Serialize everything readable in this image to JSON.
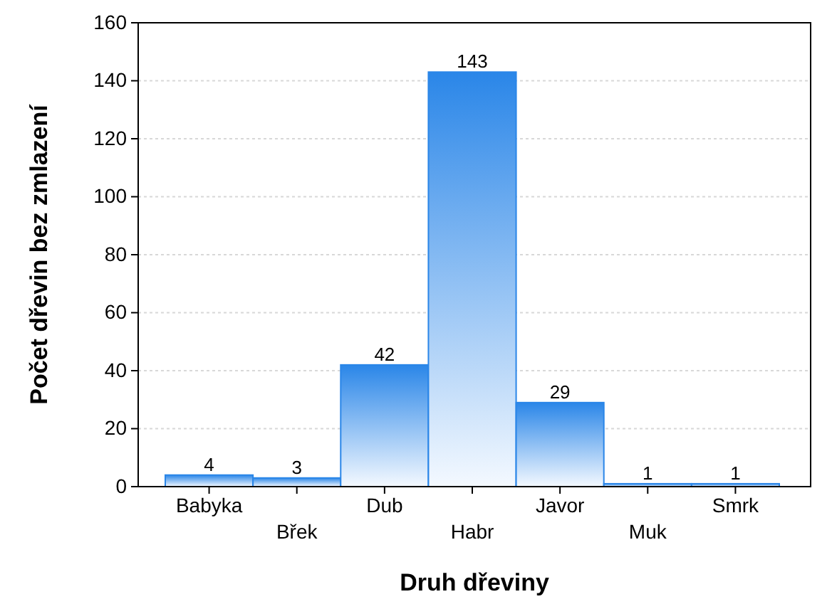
{
  "chart_data": {
    "type": "bar",
    "xlabel": "Druh dřeviny",
    "ylabel": "Počet dřevin bez zmlazení",
    "categories": [
      "Babyka",
      "Břek",
      "Dub",
      "Habr",
      "Javor",
      "Muk",
      "Smrk"
    ],
    "values": [
      4,
      3,
      42,
      143,
      29,
      1,
      1
    ],
    "color": "#2a86e8",
    "ylim": [
      0,
      160
    ],
    "yticks": [
      0,
      20,
      40,
      60,
      80,
      100,
      120,
      140,
      160
    ],
    "grid": "y",
    "data_labels": true
  }
}
